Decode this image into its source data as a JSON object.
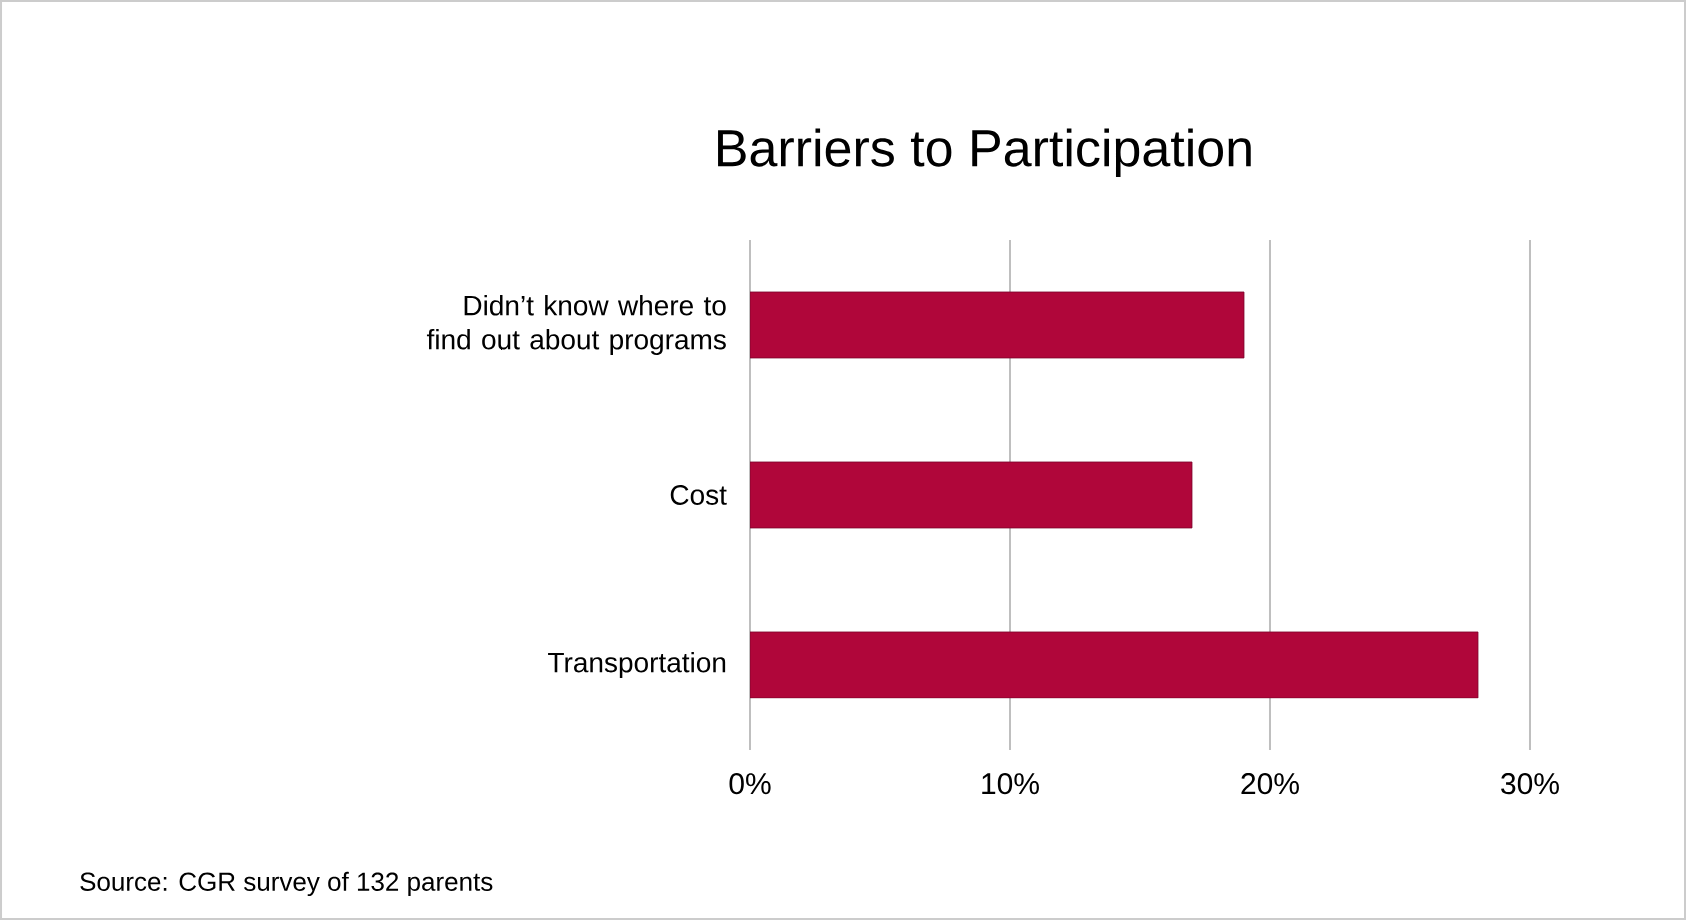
{
  "chart_data": {
    "type": "bar",
    "orientation": "horizontal",
    "title": "Barriers to Participation",
    "categories": [
      "Didn’t know where to find out about programs",
      "Cost",
      "Transportation"
    ],
    "values": [
      19,
      17,
      28
    ],
    "color": "#b0063a",
    "xlim": [
      0,
      30
    ],
    "xticks": [
      {
        "value": 0,
        "label": "0%"
      },
      {
        "value": 10,
        "label": "10%"
      },
      {
        "value": 20,
        "label": "20%"
      },
      {
        "value": 30,
        "label": "30%"
      }
    ],
    "grid": "x",
    "annotations": [
      "Source: CGR survey of 132 parents"
    ]
  }
}
